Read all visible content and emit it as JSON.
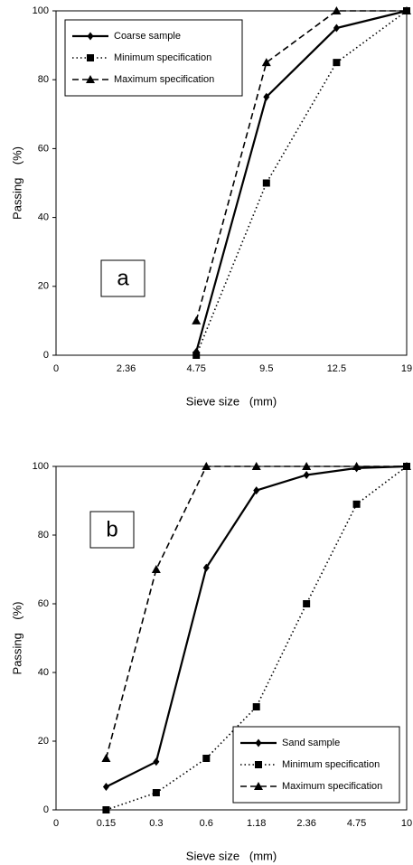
{
  "chart_data": [
    {
      "type": "line",
      "panel_label": "a",
      "legend_corner": "upper-left",
      "x_label": "Sieve size   (mm)",
      "y_label": "Passing    (%)",
      "categories": [
        "0",
        "2.36",
        "4.75",
        "9.5",
        "12.5",
        "19"
      ],
      "ylim": [
        0,
        100
      ],
      "yticks": [
        0,
        20,
        40,
        60,
        80,
        100
      ],
      "series": [
        {
          "name": "Coarse sample",
          "color": "#000000",
          "dash": "solid",
          "marker": "diamond",
          "values": [
            null,
            null,
            1,
            75,
            95,
            100
          ]
        },
        {
          "name": "Minimum specification",
          "color": "#000000",
          "dash": "dotted",
          "marker": "square",
          "values": [
            null,
            null,
            0,
            50,
            85,
            100
          ]
        },
        {
          "name": "Maximum specification",
          "color": "#000000",
          "dash": "dashed",
          "marker": "triangle",
          "values": [
            null,
            null,
            10,
            85,
            100,
            100
          ]
        }
      ]
    },
    {
      "type": "line",
      "panel_label": "b",
      "legend_corner": "lower-right",
      "x_label": "Sieve size   (mm)",
      "y_label": "Passing    (%)",
      "categories": [
        "0",
        "0.15",
        "0.3",
        "0.6",
        "1.18",
        "2.36",
        "4.75",
        "10"
      ],
      "ylim": [
        0,
        100
      ],
      "yticks": [
        0,
        20,
        40,
        60,
        80,
        100
      ],
      "series": [
        {
          "name": "Sand sample",
          "color": "#000000",
          "dash": "solid",
          "marker": "diamond",
          "values": [
            null,
            6.7,
            14,
            70.5,
            93,
            97.5,
            99.5,
            100
          ]
        },
        {
          "name": "Minimum specification",
          "color": "#000000",
          "dash": "dotted",
          "marker": "square",
          "values": [
            null,
            0,
            5,
            15,
            30,
            60,
            89,
            100
          ]
        },
        {
          "name": "Maximum specification",
          "color": "#000000",
          "dash": "dashed",
          "marker": "triangle",
          "values": [
            null,
            15,
            70,
            100,
            100,
            100,
            100,
            100
          ]
        }
      ]
    }
  ]
}
